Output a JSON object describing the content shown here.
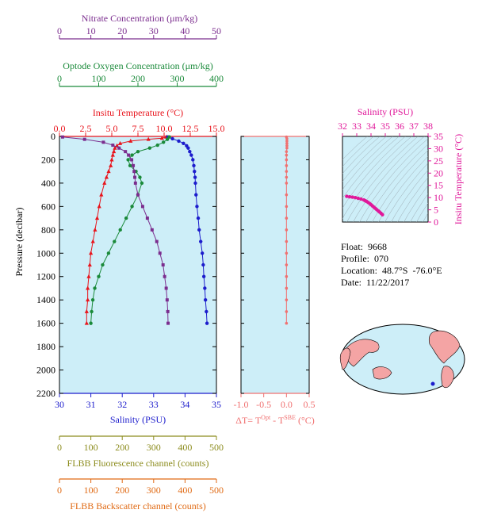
{
  "float_info": {
    "float_label": "Float:",
    "float_value": "9668",
    "profile_label": "Profile:",
    "profile_value": "070",
    "location_label": "Location:",
    "location_value": "48.7°S  -76.0°E",
    "date_label": "Date:",
    "date_value": "11/22/2017"
  },
  "chart_data": [
    {
      "type": "line",
      "y_axis": {
        "label": "Pressure (decibar)",
        "range": [
          2200,
          0
        ],
        "ticks": [
          0,
          200,
          400,
          600,
          800,
          1000,
          1200,
          1400,
          1600,
          1800,
          2000,
          2200
        ],
        "inverted": true
      },
      "axes": {
        "nitrate": {
          "label": "Nitrate Concentration (μm/kg)",
          "range": [
            0,
            50
          ],
          "ticks": [
            0,
            10,
            20,
            30,
            40,
            50
          ],
          "color": "#7b2d8e"
        },
        "oxygen": {
          "label": "Optode Oxygen Concentration (μm/kg)",
          "range": [
            0,
            400
          ],
          "ticks": [
            0,
            100,
            200,
            300,
            400
          ],
          "color": "#1a8a3a"
        },
        "temperature": {
          "label": "Insitu Temperature (°C)",
          "range": [
            0,
            15
          ],
          "ticks": [
            "0.0",
            "2.5",
            "5.0",
            "7.5",
            "10.0",
            "12.5",
            "15.0"
          ],
          "color": "#e8141c"
        },
        "salinity": {
          "label": "Salinity (PSU)",
          "range": [
            30,
            35
          ],
          "ticks": [
            30,
            31,
            32,
            33,
            34,
            35
          ],
          "color": "#1c1ccc"
        },
        "fluorescence": {
          "label": "FLBB Fluorescence channel (counts)",
          "range": [
            0,
            500
          ],
          "ticks": [
            0,
            100,
            200,
            300,
            400,
            500
          ],
          "color": "#8c8c1e"
        },
        "backscatter": {
          "label": "FLBB Backscatter channel (counts)",
          "range": [
            0,
            500
          ],
          "ticks": [
            0,
            100,
            200,
            300,
            400,
            500
          ],
          "color": "#e06a14"
        }
      },
      "series": [
        {
          "axis": "temperature",
          "color": "#e8141c",
          "p": [
            5,
            15,
            25,
            40,
            60,
            80,
            100,
            130,
            160,
            200,
            250,
            300,
            350,
            400,
            500,
            600,
            700,
            800,
            900,
            1000,
            1100,
            1200,
            1300,
            1400,
            1500,
            1600
          ],
          "v": [
            10.2,
            9.8,
            8.5,
            6.8,
            5.8,
            5.5,
            5.3,
            5.2,
            5.1,
            5.0,
            4.9,
            4.7,
            4.5,
            4.3,
            4.0,
            3.8,
            3.6,
            3.4,
            3.2,
            3.0,
            2.9,
            2.8,
            2.7,
            2.7,
            2.6,
            2.6
          ]
        },
        {
          "axis": "salinity",
          "color": "#1c1ccc",
          "p": [
            5,
            20,
            40,
            60,
            80,
            100,
            130,
            160,
            200,
            250,
            300,
            350,
            400,
            500,
            600,
            700,
            800,
            900,
            1000,
            1100,
            1200,
            1300,
            1400,
            1500,
            1600
          ],
          "v": [
            33.45,
            33.6,
            33.8,
            33.95,
            34.05,
            34.1,
            34.15,
            34.2,
            34.25,
            34.28,
            34.3,
            34.32,
            34.33,
            34.35,
            34.38,
            34.42,
            34.45,
            34.5,
            34.55,
            34.58,
            34.6,
            34.63,
            34.65,
            34.68,
            34.7
          ]
        },
        {
          "axis": "oxygen",
          "color": "#1a8a3a",
          "p": [
            5,
            25,
            50,
            75,
            100,
            130,
            160,
            200,
            250,
            300,
            350,
            400,
            500,
            600,
            700,
            800,
            900,
            1000,
            1100,
            1200,
            1300,
            1400,
            1500,
            1600
          ],
          "v": [
            280,
            275,
            265,
            250,
            230,
            200,
            185,
            175,
            180,
            195,
            205,
            210,
            200,
            185,
            170,
            155,
            140,
            125,
            110,
            100,
            90,
            85,
            82,
            80
          ]
        },
        {
          "axis": "nitrate",
          "color": "#7b2d8e",
          "p": [
            5,
            25,
            50,
            75,
            100,
            130,
            160,
            200,
            250,
            300,
            350,
            400,
            500,
            600,
            700,
            800,
            900,
            1000,
            1100,
            1200,
            1300,
            1400,
            1500,
            1600
          ],
          "v": [
            1,
            8,
            14,
            17,
            19,
            21,
            22,
            23,
            23.5,
            23.8,
            24,
            24.2,
            25,
            26.5,
            28,
            29.5,
            31,
            32,
            33,
            33.5,
            34,
            34.3,
            34.5,
            34.6
          ]
        }
      ]
    },
    {
      "type": "scatter",
      "x_axis": {
        "label": "ΔT= TOpt - TSBE (°C)",
        "label_main": "ΔT= T",
        "label_sup1": "Opt",
        "label_mid": " - T",
        "label_sup2": "SBE",
        "label_tail": " (°C)",
        "range": [
          -1.0,
          0.5
        ],
        "ticks": [
          "-1.0",
          "-0.5",
          "0.0",
          "0.5"
        ],
        "color": "#f07070"
      },
      "series": [
        {
          "color": "#f07070",
          "p": [
            5,
            20,
            40,
            60,
            80,
            100,
            130,
            160,
            200,
            250,
            300,
            350,
            400,
            500,
            600,
            700,
            800,
            900,
            1000,
            1100,
            1200,
            1300,
            1400,
            1500,
            1600
          ],
          "v": [
            0.0,
            0.01,
            0.01,
            0.01,
            0.01,
            0.01,
            0.0,
            0.0,
            0.0,
            0.0,
            0.0,
            0.0,
            0.0,
            0.0,
            0.0,
            0.0,
            0.0,
            0.0,
            0.0,
            0.0,
            0.0,
            0.0,
            0.0,
            0.0,
            0.0
          ]
        }
      ]
    },
    {
      "type": "scatter",
      "x_axis": {
        "label": "Salinity (PSU)",
        "range": [
          32,
          38
        ],
        "ticks": [
          32,
          33,
          34,
          35,
          36,
          37,
          38
        ],
        "color": "#e0189a"
      },
      "y_axis": {
        "label": "Insitu Temperature (°C)",
        "range": [
          0,
          35
        ],
        "ticks": [
          0,
          5,
          10,
          15,
          20,
          25,
          30,
          35
        ],
        "color": "#e0189a"
      },
      "series": [
        {
          "color": "#e0189a",
          "x": [
            32.3,
            32.5,
            32.7,
            32.9,
            33.1,
            33.3,
            33.5,
            33.6,
            33.7,
            33.8,
            33.9,
            34.0,
            34.1,
            34.2,
            34.3,
            34.4,
            34.5,
            34.6,
            34.7,
            34.8
          ],
          "y": [
            10.5,
            10.3,
            10.2,
            10.0,
            9.7,
            9.4,
            9.0,
            8.7,
            8.4,
            8.0,
            7.6,
            7.1,
            6.6,
            6.1,
            5.6,
            5.1,
            4.6,
            4.1,
            3.6,
            3.0
          ]
        }
      ]
    }
  ]
}
